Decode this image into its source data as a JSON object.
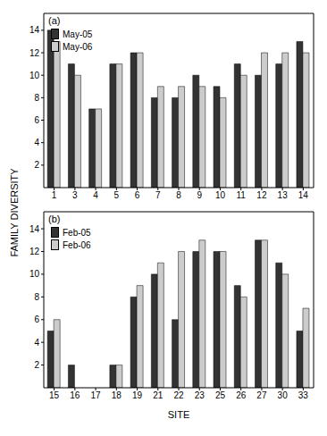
{
  "chart_data": [
    {
      "type": "bar",
      "title": "(a)",
      "y_label": "FAMILY DIVERSITY",
      "categories": [
        "1",
        "3",
        "4",
        "5",
        "6",
        "7",
        "8",
        "9",
        "10",
        "11",
        "12",
        "13",
        "14"
      ],
      "series": [
        {
          "name": "May-05",
          "color": "#333333",
          "values": [
            14,
            11,
            7,
            11,
            12,
            8,
            8,
            10,
            9,
            11,
            10,
            11,
            13
          ]
        },
        {
          "name": "May-06",
          "color": "#cccccc",
          "values": [
            13,
            10,
            7,
            11,
            12,
            9,
            9,
            9,
            8,
            10,
            12,
            12,
            12
          ]
        }
      ],
      "ylim": [
        0,
        15.5
      ],
      "yticks": [
        2,
        4,
        6,
        8,
        10,
        12,
        14
      ],
      "legend": "upper left"
    },
    {
      "type": "bar",
      "title": "(b)",
      "x_label": "SITE",
      "categories": [
        "15",
        "16",
        "17",
        "18",
        "19",
        "21",
        "22",
        "23",
        "25",
        "26",
        "27",
        "30",
        "33"
      ],
      "series": [
        {
          "name": "Feb-05",
          "color": "#333333",
          "values": [
            5,
            2,
            0,
            2,
            8,
            10,
            6,
            12,
            12,
            9,
            13,
            11,
            5
          ]
        },
        {
          "name": "Feb-06",
          "color": "#cccccc",
          "values": [
            6,
            0,
            0,
            2,
            9,
            11,
            12,
            13,
            12,
            8,
            13,
            10,
            7
          ]
        }
      ],
      "ylim": [
        0,
        15.5
      ],
      "yticks": [
        2,
        4,
        6,
        8,
        10,
        12,
        14
      ],
      "legend": "upper left"
    }
  ]
}
